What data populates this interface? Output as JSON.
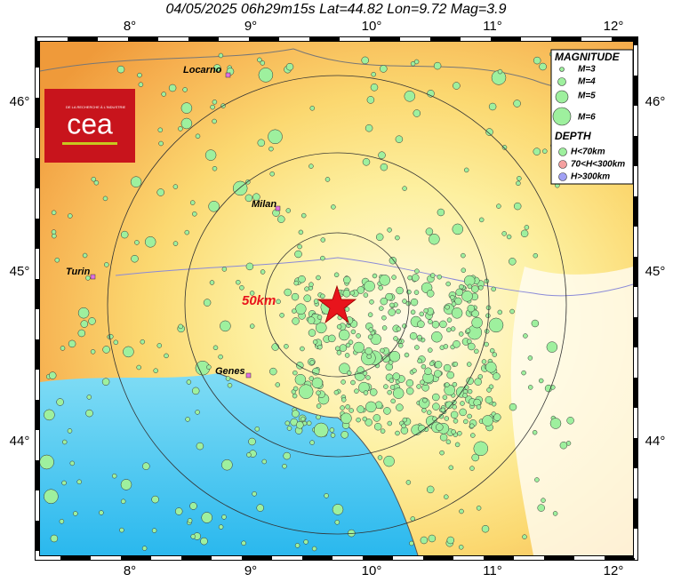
{
  "header": {
    "title": "04/05/2025 06h29m15s   Lat=44.82  Lon=9.72  Mag=3.9"
  },
  "lon_labels": [
    "8°",
    "9°",
    "10°",
    "11°",
    "12°"
  ],
  "lat_labels": [
    "46°",
    "45°",
    "44°"
  ],
  "cities": [
    "Locarno",
    "Milan",
    "Turin",
    "Genes"
  ],
  "distance_label": "50km",
  "logo": {
    "name": "cea",
    "tagline": "DE LA RECHERCHE À L'INDUSTRIE"
  },
  "legend": {
    "magnitude_title": "MAGNITUDE",
    "magnitudes": [
      "M=3",
      "M=4",
      "M=5",
      "M=6"
    ],
    "depth_title": "DEPTH",
    "depths": [
      "H<70km",
      "70<H<300km",
      "H>300km"
    ]
  }
}
